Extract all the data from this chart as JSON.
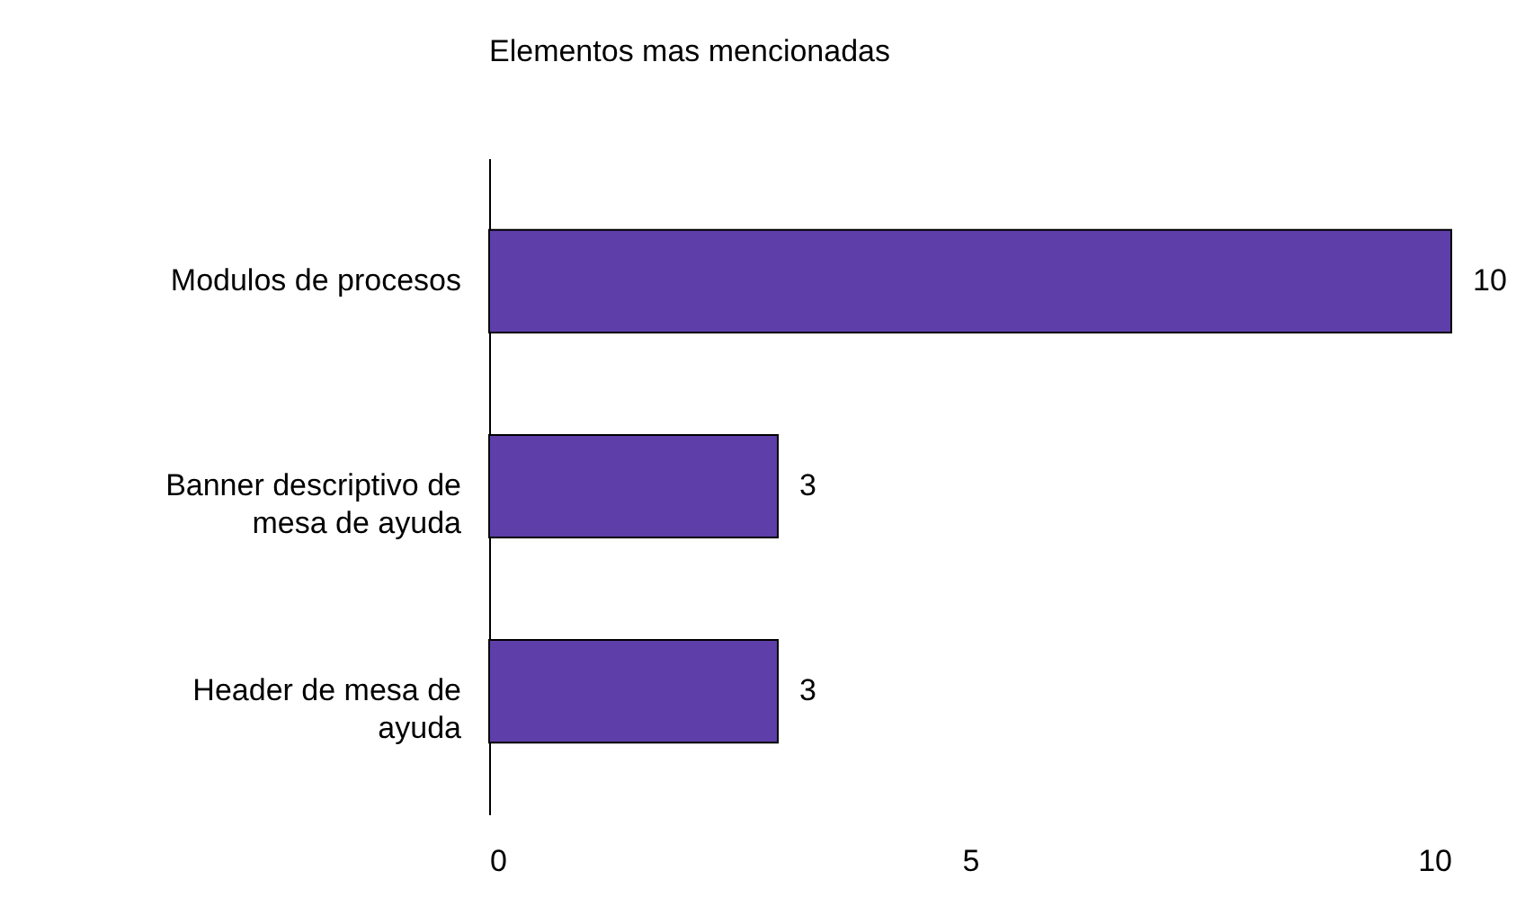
{
  "chart_data": {
    "type": "bar",
    "title": "Elementos mas mencionadas",
    "orientation": "horizontal",
    "categories": [
      "Modulos de procesos",
      "Banner descriptivo de mesa de ayuda",
      "Header de mesa de ayuda"
    ],
    "values": [
      10,
      3,
      3
    ],
    "color": "#5e3ea9",
    "xlim": [
      0,
      10
    ],
    "xticks": [
      0,
      5,
      10
    ],
    "grid": false,
    "data_labels": true
  }
}
